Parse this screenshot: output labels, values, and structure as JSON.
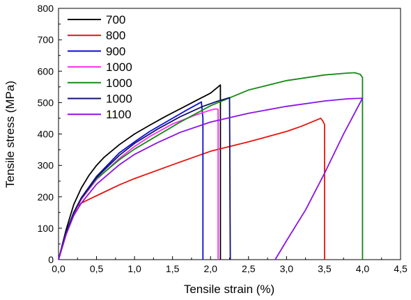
{
  "chart_data": {
    "type": "line",
    "title": "",
    "xlabel": "Tensile strain (%)",
    "ylabel": "Tensile stress (MPa)",
    "xlim": [
      0,
      4.5
    ],
    "ylim": [
      0,
      800
    ],
    "x_ticks": [
      0,
      0.5,
      1.0,
      1.5,
      2.0,
      2.5,
      3.0,
      3.5,
      4.0,
      4.5
    ],
    "x_tick_labels": [
      "0,0",
      "0,5",
      "1,0",
      "1,5",
      "2,0",
      "2,5",
      "3,0",
      "3,5",
      "4,0",
      "4,5"
    ],
    "y_ticks": [
      0,
      100,
      200,
      300,
      400,
      500,
      600,
      700,
      800
    ],
    "y_tick_labels": [
      "0",
      "100",
      "200",
      "300",
      "400",
      "500",
      "600",
      "700",
      "800"
    ],
    "grid": false,
    "legend_position": "top-left",
    "series": [
      {
        "name": "700",
        "color": "#000000",
        "points": [
          [
            0,
            0
          ],
          [
            0.1,
            95
          ],
          [
            0.2,
            175
          ],
          [
            0.3,
            228
          ],
          [
            0.4,
            268
          ],
          [
            0.5,
            300
          ],
          [
            0.6,
            326
          ],
          [
            0.8,
            366
          ],
          [
            1.0,
            400
          ],
          [
            1.2,
            428
          ],
          [
            1.4,
            455
          ],
          [
            1.6,
            480
          ],
          [
            1.8,
            505
          ],
          [
            2.0,
            530
          ],
          [
            2.1,
            550
          ],
          [
            2.13,
            556
          ],
          [
            2.13,
            0
          ]
        ]
      },
      {
        "name": "800",
        "color": "#e8120c",
        "points": [
          [
            0,
            0
          ],
          [
            0.1,
            80
          ],
          [
            0.2,
            145
          ],
          [
            0.25,
            170
          ],
          [
            0.3,
            180
          ],
          [
            0.4,
            192
          ],
          [
            0.6,
            215
          ],
          [
            0.8,
            238
          ],
          [
            1.0,
            258
          ],
          [
            1.5,
            302
          ],
          [
            2.0,
            345
          ],
          [
            2.5,
            375
          ],
          [
            3.0,
            408
          ],
          [
            3.2,
            425
          ],
          [
            3.45,
            450
          ],
          [
            3.48,
            440
          ],
          [
            3.5,
            430
          ],
          [
            3.5,
            0
          ]
        ]
      },
      {
        "name": "900",
        "color": "#0a0ad8",
        "points": [
          [
            0,
            0
          ],
          [
            0.1,
            85
          ],
          [
            0.2,
            150
          ],
          [
            0.3,
            197
          ],
          [
            0.5,
            265
          ],
          [
            0.8,
            340
          ],
          [
            1.0,
            375
          ],
          [
            1.2,
            408
          ],
          [
            1.5,
            450
          ],
          [
            1.7,
            478
          ],
          [
            1.85,
            498
          ],
          [
            1.88,
            502
          ],
          [
            1.9,
            450
          ],
          [
            1.9,
            0
          ]
        ]
      },
      {
        "name": "1000",
        "color": "#ff2bf2",
        "points": [
          [
            0,
            0
          ],
          [
            0.1,
            85
          ],
          [
            0.2,
            148
          ],
          [
            0.3,
            192
          ],
          [
            0.5,
            255
          ],
          [
            0.8,
            322
          ],
          [
            1.0,
            360
          ],
          [
            1.2,
            392
          ],
          [
            1.5,
            432
          ],
          [
            1.8,
            460
          ],
          [
            2.0,
            476
          ],
          [
            2.07,
            480
          ],
          [
            2.1,
            478
          ],
          [
            2.1,
            0
          ]
        ]
      },
      {
        "name": "1000",
        "color": "#138a13",
        "points": [
          [
            0,
            0
          ],
          [
            0.1,
            85
          ],
          [
            0.2,
            150
          ],
          [
            0.3,
            195
          ],
          [
            0.5,
            258
          ],
          [
            0.8,
            318
          ],
          [
            1.0,
            352
          ],
          [
            1.3,
            395
          ],
          [
            1.6,
            438
          ],
          [
            2.0,
            490
          ],
          [
            2.5,
            540
          ],
          [
            3.0,
            570
          ],
          [
            3.5,
            588
          ],
          [
            3.8,
            594
          ],
          [
            3.9,
            595
          ],
          [
            3.97,
            590
          ],
          [
            4.0,
            580
          ],
          [
            4.0,
            0
          ]
        ]
      },
      {
        "name": "1000",
        "color": "#10106e",
        "points": [
          [
            0,
            0
          ],
          [
            0.1,
            85
          ],
          [
            0.2,
            150
          ],
          [
            0.3,
            195
          ],
          [
            0.5,
            262
          ],
          [
            0.8,
            332
          ],
          [
            1.0,
            370
          ],
          [
            1.3,
            415
          ],
          [
            1.6,
            455
          ],
          [
            1.9,
            488
          ],
          [
            2.1,
            505
          ],
          [
            2.2,
            512
          ],
          [
            2.25,
            516
          ],
          [
            2.26,
            0
          ]
        ]
      },
      {
        "name": "1100",
        "color": "#8a12e6",
        "points": [
          [
            0,
            0
          ],
          [
            0.1,
            80
          ],
          [
            0.2,
            140
          ],
          [
            0.3,
            180
          ],
          [
            0.5,
            240
          ],
          [
            0.8,
            302
          ],
          [
            1.0,
            335
          ],
          [
            1.3,
            372
          ],
          [
            1.6,
            405
          ],
          [
            2.0,
            438
          ],
          [
            2.5,
            466
          ],
          [
            3.0,
            488
          ],
          [
            3.5,
            505
          ],
          [
            3.8,
            512
          ],
          [
            4.0,
            514
          ],
          [
            3.75,
            400
          ],
          [
            3.5,
            275
          ],
          [
            3.25,
            158
          ],
          [
            3.0,
            60
          ],
          [
            2.85,
            0
          ]
        ]
      }
    ]
  }
}
